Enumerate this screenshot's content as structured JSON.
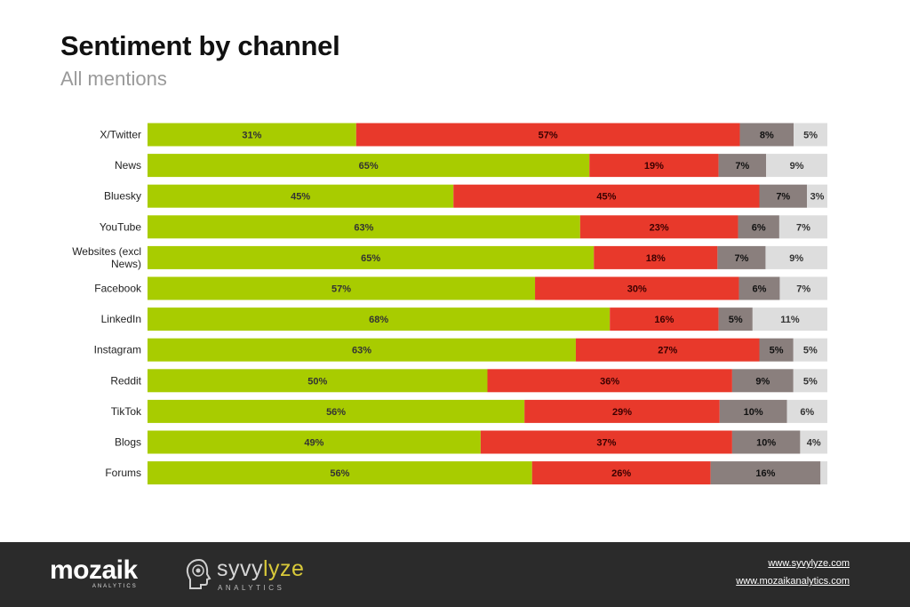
{
  "title": "Sentiment by channel",
  "subtitle": "All mentions",
  "colors": {
    "positive": "#a8cc00",
    "negative": "#e8392b",
    "neutral": "#8a7f7d",
    "other": "#dddddd"
  },
  "chart_data": {
    "type": "bar",
    "orientation": "horizontal",
    "stacked": "100%",
    "categories": [
      "X/Twitter",
      "News",
      "Bluesky",
      "YouTube",
      "Websites (excl News)",
      "Facebook",
      "LinkedIn",
      "Instagram",
      "Reddit",
      "TikTok",
      "Blogs",
      "Forums"
    ],
    "category_lines": [
      [
        "X/Twitter"
      ],
      [
        "News"
      ],
      [
        "Bluesky"
      ],
      [
        "YouTube"
      ],
      [
        "Websites (excl",
        "News)"
      ],
      [
        "Facebook"
      ],
      [
        "LinkedIn"
      ],
      [
        "Instagram"
      ],
      [
        "Reddit"
      ],
      [
        "TikTok"
      ],
      [
        "Blogs"
      ],
      [
        "Forums"
      ]
    ],
    "series": [
      {
        "color": "#a8cc00",
        "values": [
          31,
          65,
          45,
          63,
          65,
          57,
          68,
          63,
          50,
          56,
          49,
          56
        ]
      },
      {
        "color": "#e8392b",
        "values": [
          57,
          19,
          45,
          23,
          18,
          30,
          16,
          27,
          36,
          29,
          37,
          26
        ]
      },
      {
        "color": "#8a7f7d",
        "values": [
          8,
          7,
          7,
          6,
          7,
          6,
          5,
          5,
          9,
          10,
          10,
          16
        ]
      },
      {
        "color": "#dddddd",
        "values": [
          5,
          9,
          3,
          7,
          9,
          7,
          11,
          5,
          5,
          6,
          4,
          1
        ]
      }
    ],
    "value_labels_suffix": "%",
    "hidden_labels": [
      [
        11,
        3
      ]
    ],
    "xlim": [
      0,
      100
    ],
    "legend": "none",
    "grid": false
  },
  "footer": {
    "brand1": "mozaik",
    "brand1_sub": "ANALYTICS",
    "brand2_a": "syvy",
    "brand2_b": "lyze",
    "brand2_sub": "ANALYTICS",
    "link1": "www.syvylyze.com",
    "link2": "www.mozaikanalytics.com"
  }
}
